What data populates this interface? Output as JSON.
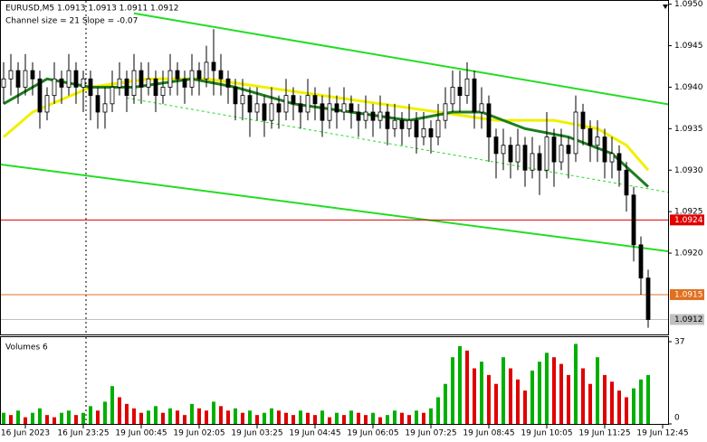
{
  "chart_data": [
    {
      "type": "candlestick",
      "title": "EURUSD,M5  1.0913 1.0913 1.0911 1.0912",
      "annotation": "Channel size = 21 Slope = -0.07",
      "color": "#000000",
      "up_color": "#ffffff",
      "down_color": "#000000",
      "ylim": [
        1.09102,
        1.09504
      ],
      "yticks": [
        {
          "value": 1.095,
          "label": "1.0950"
        },
        1.0945,
        {
          "value": 1.094,
          "label": "1.0940"
        },
        1.0935,
        {
          "value": 1.093,
          "label": "1.0930"
        },
        1.0925,
        {
          "value": 1.092,
          "label": "1.0920"
        }
      ],
      "values": [
        [
          1.094,
          1.0943,
          1.0938,
          1.0941
        ],
        [
          1.0941,
          1.0944,
          1.0939,
          1.0942
        ],
        [
          1.0942,
          1.0943,
          1.0938,
          1.094
        ],
        [
          1.094,
          1.0944,
          1.0939,
          1.0942
        ],
        [
          1.0942,
          1.0943,
          1.0939,
          1.0941
        ],
        [
          1.0941,
          1.0942,
          1.0935,
          1.0937
        ],
        [
          1.0937,
          1.094,
          1.0936,
          1.0939
        ],
        [
          1.0939,
          1.0943,
          1.0938,
          1.0941
        ],
        [
          1.0941,
          1.0942,
          1.0938,
          1.094
        ],
        [
          1.094,
          1.0944,
          1.0939,
          1.0942
        ],
        [
          1.0942,
          1.0943,
          1.0938,
          1.094
        ],
        [
          1.094,
          1.0942,
          1.0937,
          1.0941
        ],
        [
          1.0941,
          1.0942,
          1.0936,
          1.0939
        ],
        [
          1.0939,
          1.094,
          1.0935,
          1.0937
        ],
        [
          1.0937,
          1.094,
          1.0935,
          1.0938
        ],
        [
          1.0938,
          1.0942,
          1.0937,
          1.094
        ],
        [
          1.094,
          1.0943,
          1.0939,
          1.0941
        ],
        [
          1.0941,
          1.0942,
          1.0937,
          1.0939
        ],
        [
          1.0939,
          1.0944,
          1.0938,
          1.0942
        ],
        [
          1.0942,
          1.0943,
          1.0938,
          1.094
        ],
        [
          1.094,
          1.0943,
          1.0939,
          1.0941
        ],
        [
          1.0941,
          1.0942,
          1.0937,
          1.0939
        ],
        [
          1.0939,
          1.0942,
          1.0938,
          1.094
        ],
        [
          1.094,
          1.0944,
          1.0939,
          1.0942
        ],
        [
          1.0942,
          1.0943,
          1.0939,
          1.0941
        ],
        [
          1.0941,
          1.0942,
          1.0938,
          1.094
        ],
        [
          1.094,
          1.0944,
          1.0939,
          1.0942
        ],
        [
          1.0942,
          1.0943,
          1.0939,
          1.0941
        ],
        [
          1.0941,
          1.0945,
          1.094,
          1.0943
        ],
        [
          1.0943,
          1.0947,
          1.0939,
          1.0942
        ],
        [
          1.0942,
          1.0944,
          1.0939,
          1.0941
        ],
        [
          1.0941,
          1.0942,
          1.0938,
          1.094
        ],
        [
          1.094,
          1.0941,
          1.0936,
          1.0938
        ],
        [
          1.0938,
          1.0941,
          1.0936,
          1.0939
        ],
        [
          1.0939,
          1.094,
          1.0934,
          1.0937
        ],
        [
          1.0937,
          1.094,
          1.0936,
          1.0938
        ],
        [
          1.0938,
          1.0939,
          1.0934,
          1.0936
        ],
        [
          1.0936,
          1.094,
          1.0935,
          1.0938
        ],
        [
          1.0938,
          1.0939,
          1.0935,
          1.0937
        ],
        [
          1.0937,
          1.0941,
          1.0936,
          1.0939
        ],
        [
          1.0939,
          1.094,
          1.0936,
          1.0938
        ],
        [
          1.0938,
          1.0939,
          1.0935,
          1.0937
        ],
        [
          1.0937,
          1.0941,
          1.0936,
          1.0939
        ],
        [
          1.0939,
          1.094,
          1.0936,
          1.0938
        ],
        [
          1.0938,
          1.0939,
          1.0934,
          1.0936
        ],
        [
          1.0936,
          1.094,
          1.0935,
          1.0938
        ],
        [
          1.0938,
          1.0939,
          1.0935,
          1.0937
        ],
        [
          1.0937,
          1.094,
          1.0936,
          1.0938
        ],
        [
          1.0938,
          1.0939,
          1.0935,
          1.0937
        ],
        [
          1.0937,
          1.0938,
          1.0934,
          1.0936
        ],
        [
          1.0936,
          1.0939,
          1.0935,
          1.0937
        ],
        [
          1.0937,
          1.0938,
          1.0934,
          1.0936
        ],
        [
          1.0936,
          1.0939,
          1.0935,
          1.0937
        ],
        [
          1.0937,
          1.0938,
          1.0933,
          1.0935
        ],
        [
          1.0935,
          1.0938,
          1.0934,
          1.0936
        ],
        [
          1.0936,
          1.0937,
          1.0933,
          1.0935
        ],
        [
          1.0935,
          1.0938,
          1.0934,
          1.0936
        ],
        [
          1.0936,
          1.0937,
          1.0932,
          1.0934
        ],
        [
          1.0934,
          1.0937,
          1.0933,
          1.0935
        ],
        [
          1.0935,
          1.0936,
          1.0932,
          1.0934
        ],
        [
          1.0934,
          1.0938,
          1.0933,
          1.0936
        ],
        [
          1.0936,
          1.094,
          1.0935,
          1.0938
        ],
        [
          1.0938,
          1.0942,
          1.0937,
          1.094
        ],
        [
          1.094,
          1.0942,
          1.0937,
          1.0939
        ],
        [
          1.0939,
          1.0943,
          1.0938,
          1.0941
        ],
        [
          1.0941,
          1.0942,
          1.0935,
          1.0937
        ],
        [
          1.0937,
          1.094,
          1.0935,
          1.0938
        ],
        [
          1.0938,
          1.0939,
          1.0931,
          1.0934
        ],
        [
          1.0934,
          1.0935,
          1.0929,
          1.0932
        ],
        [
          1.0932,
          1.0935,
          1.093,
          1.0933
        ],
        [
          1.0933,
          1.0934,
          1.0929,
          1.0931
        ],
        [
          1.0931,
          1.0935,
          1.093,
          1.0933
        ],
        [
          1.0933,
          1.0934,
          1.0928,
          1.093
        ],
        [
          1.093,
          1.0934,
          1.0929,
          1.0932
        ],
        [
          1.0932,
          1.0933,
          1.0927,
          1.093
        ],
        [
          1.093,
          1.0937,
          1.0929,
          1.0934
        ],
        [
          1.0934,
          1.0935,
          1.0928,
          1.0931
        ],
        [
          1.0931,
          1.0935,
          1.093,
          1.0933
        ],
        [
          1.0933,
          1.0934,
          1.0929,
          1.0932
        ],
        [
          1.0932,
          1.0939,
          1.0931,
          1.0937
        ],
        [
          1.0937,
          1.0938,
          1.0933,
          1.0935
        ],
        [
          1.0935,
          1.0936,
          1.0931,
          1.0933
        ],
        [
          1.0933,
          1.0936,
          1.0931,
          1.0934
        ],
        [
          1.0934,
          1.0935,
          1.0929,
          1.0931
        ],
        [
          1.0931,
          1.0934,
          1.0929,
          1.0932
        ],
        [
          1.0932,
          1.0933,
          1.0928,
          1.093
        ],
        [
          1.093,
          1.0931,
          1.0925,
          1.0927
        ],
        [
          1.0927,
          1.0928,
          1.0919,
          1.0921
        ],
        [
          1.0921,
          1.0922,
          1.0915,
          1.0917
        ],
        [
          1.0917,
          1.0918,
          1.0911,
          1.0912
        ],
        null,
        null
      ],
      "lines": [
        {
          "color": "#f0f000",
          "style": "thick",
          "x": [
            0,
            4,
            12,
            20,
            28,
            36,
            44,
            52,
            60,
            68,
            76,
            82,
            86,
            89
          ],
          "values": [
            1.0934,
            1.0937,
            1.094,
            1.0941,
            1.0941,
            1.094,
            1.0939,
            1.0938,
            1.0937,
            1.0936,
            1.0936,
            1.0935,
            1.0933,
            1.093
          ]
        },
        {
          "color": "#1e7d1e",
          "style": "thick",
          "x": [
            0,
            6,
            12,
            18,
            26,
            32,
            40,
            48,
            56,
            62,
            66,
            72,
            78,
            84,
            89
          ],
          "values": [
            1.0938,
            1.0941,
            1.094,
            1.094,
            1.0941,
            1.094,
            1.0938,
            1.0937,
            1.0936,
            1.0937,
            1.0937,
            1.0935,
            1.0934,
            1.0932,
            1.0928
          ]
        },
        {
          "color": "#22dd22",
          "style": "solid",
          "x": [
            18,
            92
          ],
          "values": [
            1.09489,
            1.09379
          ]
        },
        {
          "color": "#22dd22",
          "style": "solid",
          "x": [
            -0.5,
            92
          ],
          "values": [
            1.09307,
            1.09202
          ]
        },
        {
          "color": "#22dd22",
          "style": "dashed",
          "x": [
            17,
            92
          ],
          "values": [
            1.09387,
            1.09273
          ]
        }
      ],
      "levels": [
        {
          "value": 1.0924,
          "color": "#e00000",
          "text_color": "#ffffff"
        },
        {
          "value": 1.0915,
          "color": "#e07020",
          "text_color": "#ffffff"
        },
        {
          "value": 1.0912,
          "color": "#c0c0c0",
          "text_color": "#000000"
        }
      ]
    },
    {
      "type": "bar",
      "title": "Volumes 6",
      "up_color": "#00b000",
      "down_color": "#e00000",
      "ylim": [
        0,
        37
      ],
      "yticks": [
        0,
        37
      ],
      "categories": [
        null,
        null,
        null,
        "16 Jun 2023",
        null,
        null,
        null,
        null,
        null,
        null,
        null,
        "16 Jun 23:25",
        null,
        null,
        null,
        null,
        null,
        null,
        null,
        "19 Jun 00:45",
        null,
        null,
        null,
        null,
        null,
        null,
        null,
        "19 Jun 02:05",
        null,
        null,
        null,
        null,
        null,
        null,
        null,
        "19 Jun 03:25",
        null,
        null,
        null,
        null,
        null,
        null,
        null,
        "19 Jun 04:45",
        null,
        null,
        null,
        null,
        null,
        null,
        null,
        "19 Jun 06:05",
        null,
        null,
        null,
        null,
        null,
        null,
        null,
        "19 Jun 07:25",
        null,
        null,
        null,
        null,
        null,
        null,
        null,
        "19 Jun 08:45",
        null,
        null,
        null,
        null,
        null,
        null,
        null,
        "19 Jun 10:05",
        null,
        null,
        null,
        null,
        null,
        null,
        null,
        "19 Jun 11:25",
        null,
        null,
        null,
        null,
        null,
        null,
        null,
        "19 Jun 12:45"
      ],
      "values": [
        5,
        4,
        6,
        3,
        5,
        7,
        4,
        3,
        5,
        6,
        4,
        5,
        8,
        6,
        10,
        17,
        12,
        9,
        7,
        5,
        6,
        8,
        5,
        7,
        6,
        4,
        9,
        7,
        6,
        10,
        8,
        6,
        7,
        5,
        6,
        4,
        5,
        7,
        6,
        5,
        4,
        6,
        5,
        4,
        6,
        3,
        5,
        4,
        6,
        5,
        4,
        5,
        3,
        4,
        6,
        5,
        4,
        6,
        5,
        7,
        12,
        18,
        30,
        35,
        33,
        25,
        28,
        22,
        18,
        30,
        25,
        20,
        15,
        24,
        28,
        32,
        30,
        27,
        22,
        36,
        25,
        18,
        30,
        22,
        19,
        15,
        12,
        16,
        20,
        22,
        null,
        null
      ]
    }
  ]
}
